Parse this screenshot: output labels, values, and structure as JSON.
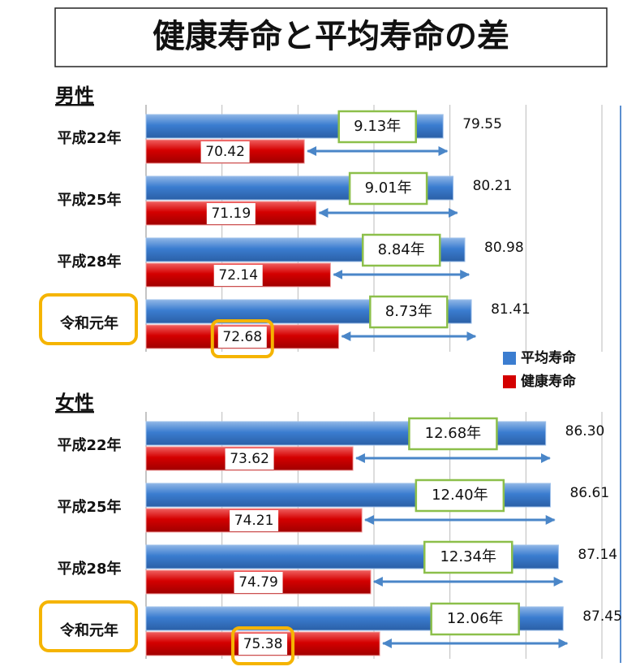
{
  "title": "健康寿命と平均寿命の差",
  "chart_data": [
    {
      "type": "bar",
      "title": "男性",
      "categories": [
        "平成22年",
        "平成25年",
        "平成28年",
        "令和元年"
      ],
      "series": [
        {
          "name": "平均寿命",
          "color": "#3b7dd0",
          "values": [
            79.55,
            80.21,
            80.98,
            81.41
          ]
        },
        {
          "name": "健康寿命",
          "color": "#d40000",
          "values": [
            70.42,
            71.19,
            72.14,
            72.68
          ]
        }
      ],
      "gaps": {
        "values": [
          9.13,
          9.01,
          8.84,
          8.73
        ],
        "value_labels": [
          "9.13年",
          "9.01年",
          "8.84年",
          "8.73年"
        ]
      },
      "xlim": [
        60,
        90
      ],
      "xticks": [
        65,
        70,
        75,
        80,
        85,
        90
      ],
      "grid": true,
      "legend": "right"
    },
    {
      "type": "bar",
      "title": "女性",
      "categories": [
        "平成22年",
        "平成25年",
        "平成28年",
        "令和元年"
      ],
      "series": [
        {
          "color": "#3b7dd0",
          "values": [
            86.3,
            86.61,
            87.14,
            87.45
          ],
          "value_labels": [
            "86.30",
            "86.61",
            "87.14",
            "87.45"
          ]
        },
        {
          "color": "#d40000",
          "values": [
            73.62,
            74.21,
            74.79,
            75.38
          ]
        }
      ],
      "gaps": {
        "values": [
          12.68,
          12.4,
          12.34,
          12.06
        ],
        "value_labels": [
          "12.68年",
          "12.40年",
          "12.34年",
          "12.06年"
        ]
      },
      "xlim": [
        60,
        90
      ],
      "xticks": [
        65,
        70,
        75,
        80,
        85,
        90
      ],
      "grid": true
    }
  ]
}
